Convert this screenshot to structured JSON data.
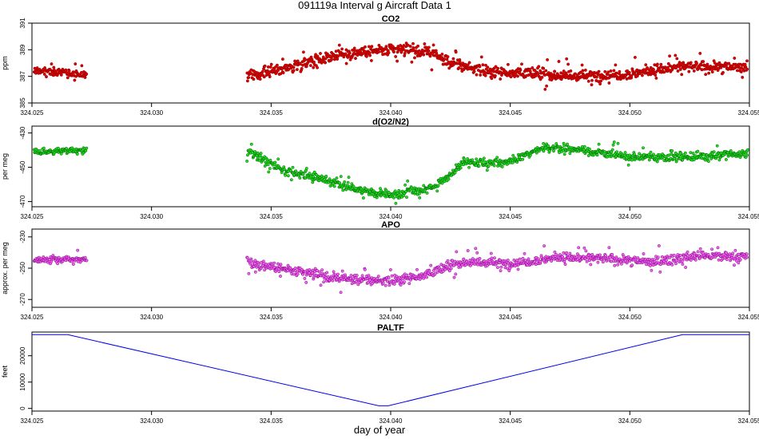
{
  "title": "091119a   Interval g Aircraft Data 1",
  "xlabel": "day of year",
  "chart_data": [
    {
      "type": "scatter",
      "title": "CO2",
      "ylabel": "ppm",
      "xlim": [
        324.025,
        324.055
      ],
      "ylim": [
        385,
        391
      ],
      "xticks": [
        "324.025",
        "324.030",
        "324.035",
        "324.040",
        "324.045",
        "324.050",
        "324.055"
      ],
      "yticks": [
        "385",
        "387",
        "389",
        "391"
      ],
      "colors": {
        "points": "#e00000",
        "outline": "#8b0000"
      },
      "series": [
        {
          "x_range": [
            324.025,
            324.0273
          ],
          "trend": [
            [
              324.025,
              387.5
            ],
            [
              324.0273,
              387.1
            ]
          ],
          "noise": 0.5
        },
        {
          "x_range": [
            324.034,
            324.055
          ],
          "trend": [
            [
              324.034,
              387.0
            ],
            [
              324.0355,
              387.6
            ],
            [
              324.037,
              388.3
            ],
            [
              324.038,
              388.7
            ],
            [
              324.04,
              389.0
            ],
            [
              324.0415,
              388.9
            ],
            [
              324.0425,
              388.0
            ],
            [
              324.044,
              387.4
            ],
            [
              324.046,
              387.2
            ],
            [
              324.048,
              387.0
            ],
            [
              324.05,
              387.2
            ],
            [
              324.052,
              387.7
            ],
            [
              324.055,
              387.7
            ]
          ],
          "noise": 0.7
        }
      ]
    },
    {
      "type": "scatter",
      "title": "d(O2/N2)",
      "ylabel": "per meg",
      "xlim": [
        324.025,
        324.055
      ],
      "ylim": [
        -473,
        -426
      ],
      "xticks": [
        "324.025",
        "324.030",
        "324.035",
        "324.040",
        "324.045",
        "324.050",
        "324.055"
      ],
      "yticks": [
        "-430",
        "-450",
        "-470"
      ],
      "colors": {
        "points": "#22dd22",
        "outline": "#006400"
      },
      "series": [
        {
          "x_range": [
            324.025,
            324.0273
          ],
          "trend": [
            [
              324.025,
              -441
            ],
            [
              324.0273,
              -440
            ]
          ],
          "noise": 3
        },
        {
          "x_range": [
            324.034,
            324.055
          ],
          "trend": [
            [
              324.034,
              -440
            ],
            [
              324.0355,
              -452
            ],
            [
              324.037,
              -456
            ],
            [
              324.0385,
              -463
            ],
            [
              324.04,
              -466
            ],
            [
              324.0415,
              -463
            ],
            [
              324.0425,
              -455
            ],
            [
              324.043,
              -447
            ],
            [
              324.045,
              -447
            ],
            [
              324.0465,
              -438
            ],
            [
              324.048,
              -440
            ],
            [
              324.05,
              -444
            ],
            [
              324.052,
              -444
            ],
            [
              324.055,
              -442
            ]
          ],
          "noise": 4
        }
      ]
    },
    {
      "type": "scatter",
      "title": "APO",
      "ylabel": "approx. per meg",
      "xlim": [
        324.025,
        324.055
      ],
      "ylim": [
        -275,
        -225
      ],
      "xticks": [
        "324.025",
        "324.030",
        "324.035",
        "324.040",
        "324.045",
        "324.050",
        "324.055"
      ],
      "yticks": [
        "-230",
        "-250",
        "-270"
      ],
      "colors": {
        "points": "#ee66ee",
        "outline": "#8b008b"
      },
      "series": [
        {
          "x_range": [
            324.025,
            324.0273
          ],
          "trend": [
            [
              324.025,
              -245
            ],
            [
              324.0273,
              -244
            ]
          ],
          "noise": 3
        },
        {
          "x_range": [
            324.034,
            324.055
          ],
          "trend": [
            [
              324.034,
              -246
            ],
            [
              324.036,
              -252
            ],
            [
              324.038,
              -257
            ],
            [
              324.04,
              -258
            ],
            [
              324.0415,
              -254
            ],
            [
              324.043,
              -246
            ],
            [
              324.045,
              -247
            ],
            [
              324.047,
              -243
            ],
            [
              324.049,
              -244
            ],
            [
              324.051,
              -246
            ],
            [
              324.053,
              -242
            ],
            [
              324.055,
              -243
            ]
          ],
          "noise": 5
        }
      ]
    },
    {
      "type": "line",
      "title": "PALTF",
      "ylabel": "feet",
      "xlim": [
        324.025,
        324.055
      ],
      "ylim": [
        -1000,
        29000
      ],
      "xticks": [
        "324.025",
        "324.030",
        "324.035",
        "324.040",
        "324.045",
        "324.050",
        "324.055"
      ],
      "yticks": [
        "0",
        "10000",
        "20000"
      ],
      "colors": {
        "line": "#0000ee"
      },
      "x": [
        324.025,
        324.0265,
        324.0395,
        324.0399,
        324.0522,
        324.055
      ],
      "y": [
        28000,
        28000,
        1000,
        1000,
        28000,
        28000
      ]
    }
  ]
}
